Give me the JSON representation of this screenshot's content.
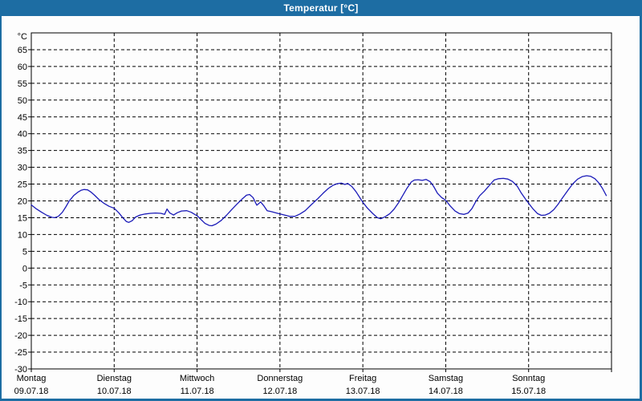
{
  "window": {
    "title": "Temperatur [°C]",
    "titlebar_color": "#1d6da3",
    "border_color": "#1d6da3",
    "background_color": "#fdfdfd"
  },
  "chart_data": {
    "type": "line",
    "title": "Temperatur [°C]",
    "grid": {
      "on": true,
      "dashed": true,
      "color": "#000000"
    },
    "plot_background": "#fdfdfd",
    "y_axis": {
      "unit": "°C",
      "min": -30,
      "max": 70,
      "tick_step": 5,
      "tick_labels": [
        65,
        60,
        55,
        50,
        45,
        40,
        35,
        30,
        25,
        20,
        15,
        10,
        5,
        0,
        -5,
        -10,
        -15,
        -20,
        -25,
        -30
      ]
    },
    "x_axis": {
      "hours_total": 168,
      "days": [
        {
          "name": "Montag",
          "date": "09.07.18"
        },
        {
          "name": "Dienstag",
          "date": "10.07.18"
        },
        {
          "name": "Mittwoch",
          "date": "11.07.18"
        },
        {
          "name": "Donnerstag",
          "date": "12.07.18"
        },
        {
          "name": "Freitag",
          "date": "13.07.18"
        },
        {
          "name": "Samstag",
          "date": "14.07.18"
        },
        {
          "name": "Sonntag",
          "date": "15.07.18"
        }
      ]
    },
    "series": [
      {
        "name": "Temperatur",
        "color": "#1a1ab8",
        "points": [
          [
            0,
            18.8
          ],
          [
            1.5,
            17.6
          ],
          [
            3,
            16.6
          ],
          [
            4.5,
            15.7
          ],
          [
            6,
            15.1
          ],
          [
            6.8,
            15.0
          ],
          [
            7.8,
            15.4
          ],
          [
            9,
            16.6
          ],
          [
            10,
            18.2
          ],
          [
            11,
            20.0
          ],
          [
            12.3,
            21.6
          ],
          [
            13.5,
            22.6
          ],
          [
            14.5,
            23.2
          ],
          [
            15.3,
            23.4
          ],
          [
            16.3,
            23.3
          ],
          [
            17.3,
            22.6
          ],
          [
            18.3,
            21.7
          ],
          [
            19.5,
            20.5
          ],
          [
            21,
            19.3
          ],
          [
            22.5,
            18.4
          ],
          [
            24,
            17.8
          ],
          [
            25.3,
            16.5
          ],
          [
            26.5,
            15.0
          ],
          [
            27.5,
            13.9
          ],
          [
            28.2,
            13.6
          ],
          [
            29.2,
            14.1
          ],
          [
            30.2,
            15.2
          ],
          [
            31.5,
            15.8
          ],
          [
            33,
            16.1
          ],
          [
            34.5,
            16.3
          ],
          [
            36,
            16.4
          ],
          [
            37.5,
            16.3
          ],
          [
            38.6,
            16.0
          ],
          [
            39.3,
            17.6
          ],
          [
            40.1,
            16.4
          ],
          [
            41.2,
            15.8
          ],
          [
            42.3,
            16.5
          ],
          [
            43.5,
            17.0
          ],
          [
            45,
            17.1
          ],
          [
            46.3,
            16.6
          ],
          [
            47.3,
            16.0
          ],
          [
            48,
            15.6
          ],
          [
            49,
            14.6
          ],
          [
            50.3,
            13.3
          ],
          [
            51.5,
            12.7
          ],
          [
            52.3,
            12.6
          ],
          [
            53.5,
            13.1
          ],
          [
            55,
            14.2
          ],
          [
            56.5,
            15.7
          ],
          [
            58,
            17.4
          ],
          [
            59.5,
            19.0
          ],
          [
            61,
            20.5
          ],
          [
            62.3,
            21.7
          ],
          [
            63.2,
            21.9
          ],
          [
            64.2,
            21.0
          ],
          [
            65.3,
            18.7
          ],
          [
            66.4,
            19.7
          ],
          [
            67.3,
            18.6
          ],
          [
            68.3,
            17.1
          ],
          [
            69.5,
            16.8
          ],
          [
            71,
            16.4
          ],
          [
            72,
            16.1
          ],
          [
            73.3,
            15.8
          ],
          [
            74.8,
            15.4
          ],
          [
            76.3,
            15.4
          ],
          [
            77.8,
            16.1
          ],
          [
            79.3,
            17.1
          ],
          [
            81,
            18.8
          ],
          [
            82.8,
            20.5
          ],
          [
            84.5,
            22.3
          ],
          [
            86,
            23.7
          ],
          [
            87.3,
            24.6
          ],
          [
            88.5,
            25.1
          ],
          [
            89.8,
            25.3
          ],
          [
            90.8,
            24.9
          ],
          [
            91.6,
            25.2
          ],
          [
            92.8,
            24.3
          ],
          [
            94,
            22.8
          ],
          [
            95,
            21.2
          ],
          [
            96,
            19.6
          ],
          [
            97.3,
            17.9
          ],
          [
            98.8,
            16.3
          ],
          [
            100.2,
            15.0
          ],
          [
            101.2,
            14.7
          ],
          [
            102.5,
            15.3
          ],
          [
            103.8,
            16.2
          ],
          [
            105,
            17.5
          ],
          [
            106.3,
            19.4
          ],
          [
            107.5,
            21.5
          ],
          [
            108.8,
            23.8
          ],
          [
            110,
            25.6
          ],
          [
            110.9,
            26.2
          ],
          [
            112,
            26.3
          ],
          [
            113.2,
            26.1
          ],
          [
            114.3,
            26.4
          ],
          [
            115.5,
            25.7
          ],
          [
            116.5,
            24.3
          ],
          [
            117.6,
            22.3
          ],
          [
            118.8,
            21.0
          ],
          [
            120,
            20.2
          ],
          [
            121.3,
            18.5
          ],
          [
            122.7,
            17.0
          ],
          [
            124,
            16.2
          ],
          [
            125.3,
            16.0
          ],
          [
            126.5,
            16.4
          ],
          [
            127.6,
            17.7
          ],
          [
            128.6,
            19.6
          ],
          [
            129.8,
            21.5
          ],
          [
            131.2,
            22.9
          ],
          [
            132.7,
            24.7
          ],
          [
            134,
            26.2
          ],
          [
            135.3,
            26.6
          ],
          [
            136.7,
            26.7
          ],
          [
            138,
            26.5
          ],
          [
            139.3,
            25.8
          ],
          [
            140.7,
            24.4
          ],
          [
            141.9,
            22.3
          ],
          [
            143,
            20.7
          ],
          [
            144,
            19.3
          ],
          [
            145.3,
            17.6
          ],
          [
            146.6,
            16.2
          ],
          [
            147.7,
            15.7
          ],
          [
            148.8,
            15.8
          ],
          [
            150,
            16.3
          ],
          [
            151.3,
            17.4
          ],
          [
            152.6,
            19.1
          ],
          [
            154,
            21.2
          ],
          [
            155.4,
            23.2
          ],
          [
            156.8,
            25.1
          ],
          [
            158.2,
            26.5
          ],
          [
            159.5,
            27.2
          ],
          [
            160.8,
            27.5
          ],
          [
            162,
            27.3
          ],
          [
            163.2,
            26.6
          ],
          [
            164.3,
            25.4
          ],
          [
            165.4,
            23.7
          ],
          [
            166.5,
            21.6
          ]
        ]
      }
    ]
  }
}
